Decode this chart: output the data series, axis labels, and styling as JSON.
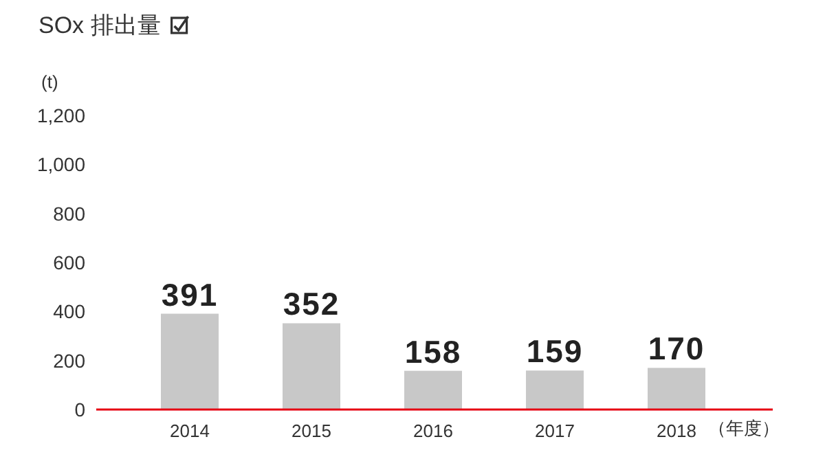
{
  "chart_data": {
    "type": "bar",
    "title": "SOx 排出量",
    "ylabel": "(t)",
    "xlabel": "（年度）",
    "categories": [
      "2014",
      "2015",
      "2016",
      "2017",
      "2018"
    ],
    "values": [
      391,
      352,
      158,
      159,
      170
    ],
    "color": "#c8c8c8",
    "ylim": [
      0,
      1200
    ],
    "yticks": [
      0,
      {
        "value": 200,
        "label": "200"
      },
      {
        "value": 400,
        "label": "400"
      },
      {
        "value": 600,
        "label": "600"
      },
      {
        "value": 800,
        "label": "800"
      },
      {
        "value": 1000,
        "label": "1,000"
      },
      {
        "value": 1200,
        "label": "1,200"
      }
    ],
    "data_labels": true
  }
}
